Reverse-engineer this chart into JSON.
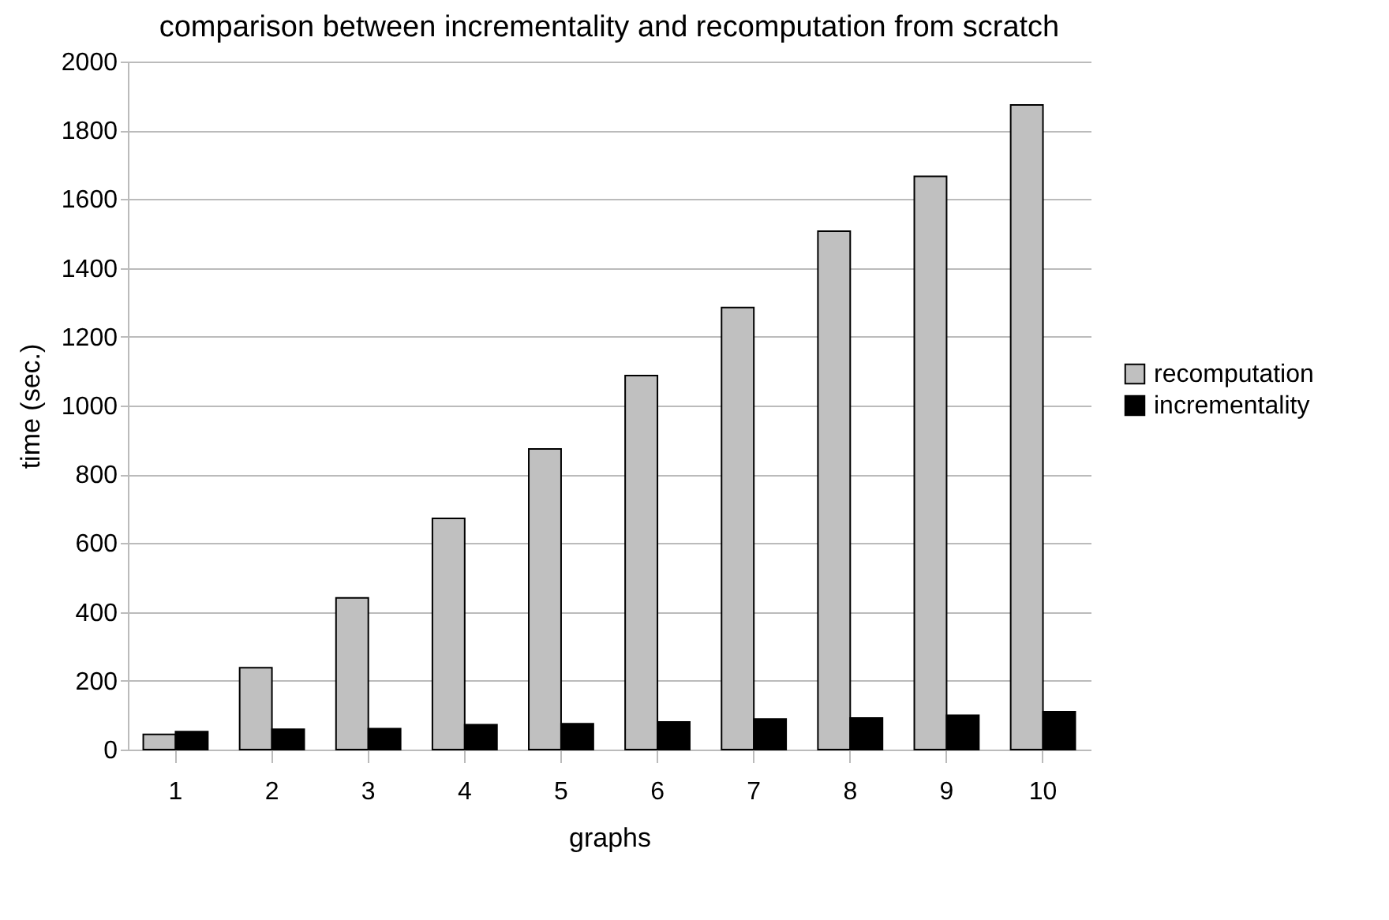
{
  "chart_data": {
    "type": "bar",
    "title": "comparison between incrementality and recomputation from scratch",
    "xlabel": "graphs",
    "ylabel": "time (sec.)",
    "categories": [
      "1",
      "2",
      "3",
      "4",
      "5",
      "6",
      "7",
      "8",
      "9",
      "10"
    ],
    "series": [
      {
        "name": "recomputation",
        "color": "#c0c0c0",
        "values": [
          44,
          238,
          441,
          672,
          874,
          1087,
          1285,
          1507,
          1666,
          1874
        ]
      },
      {
        "name": "incrementality",
        "color": "#000000",
        "values": [
          52,
          59,
          61,
          72,
          75,
          80,
          89,
          92,
          100,
          110
        ]
      }
    ],
    "ylim": [
      0,
      2000
    ],
    "yticks": [
      0,
      200,
      400,
      600,
      800,
      1000,
      1200,
      1400,
      1600,
      1800,
      2000
    ],
    "grid": "y",
    "legend": "right"
  }
}
